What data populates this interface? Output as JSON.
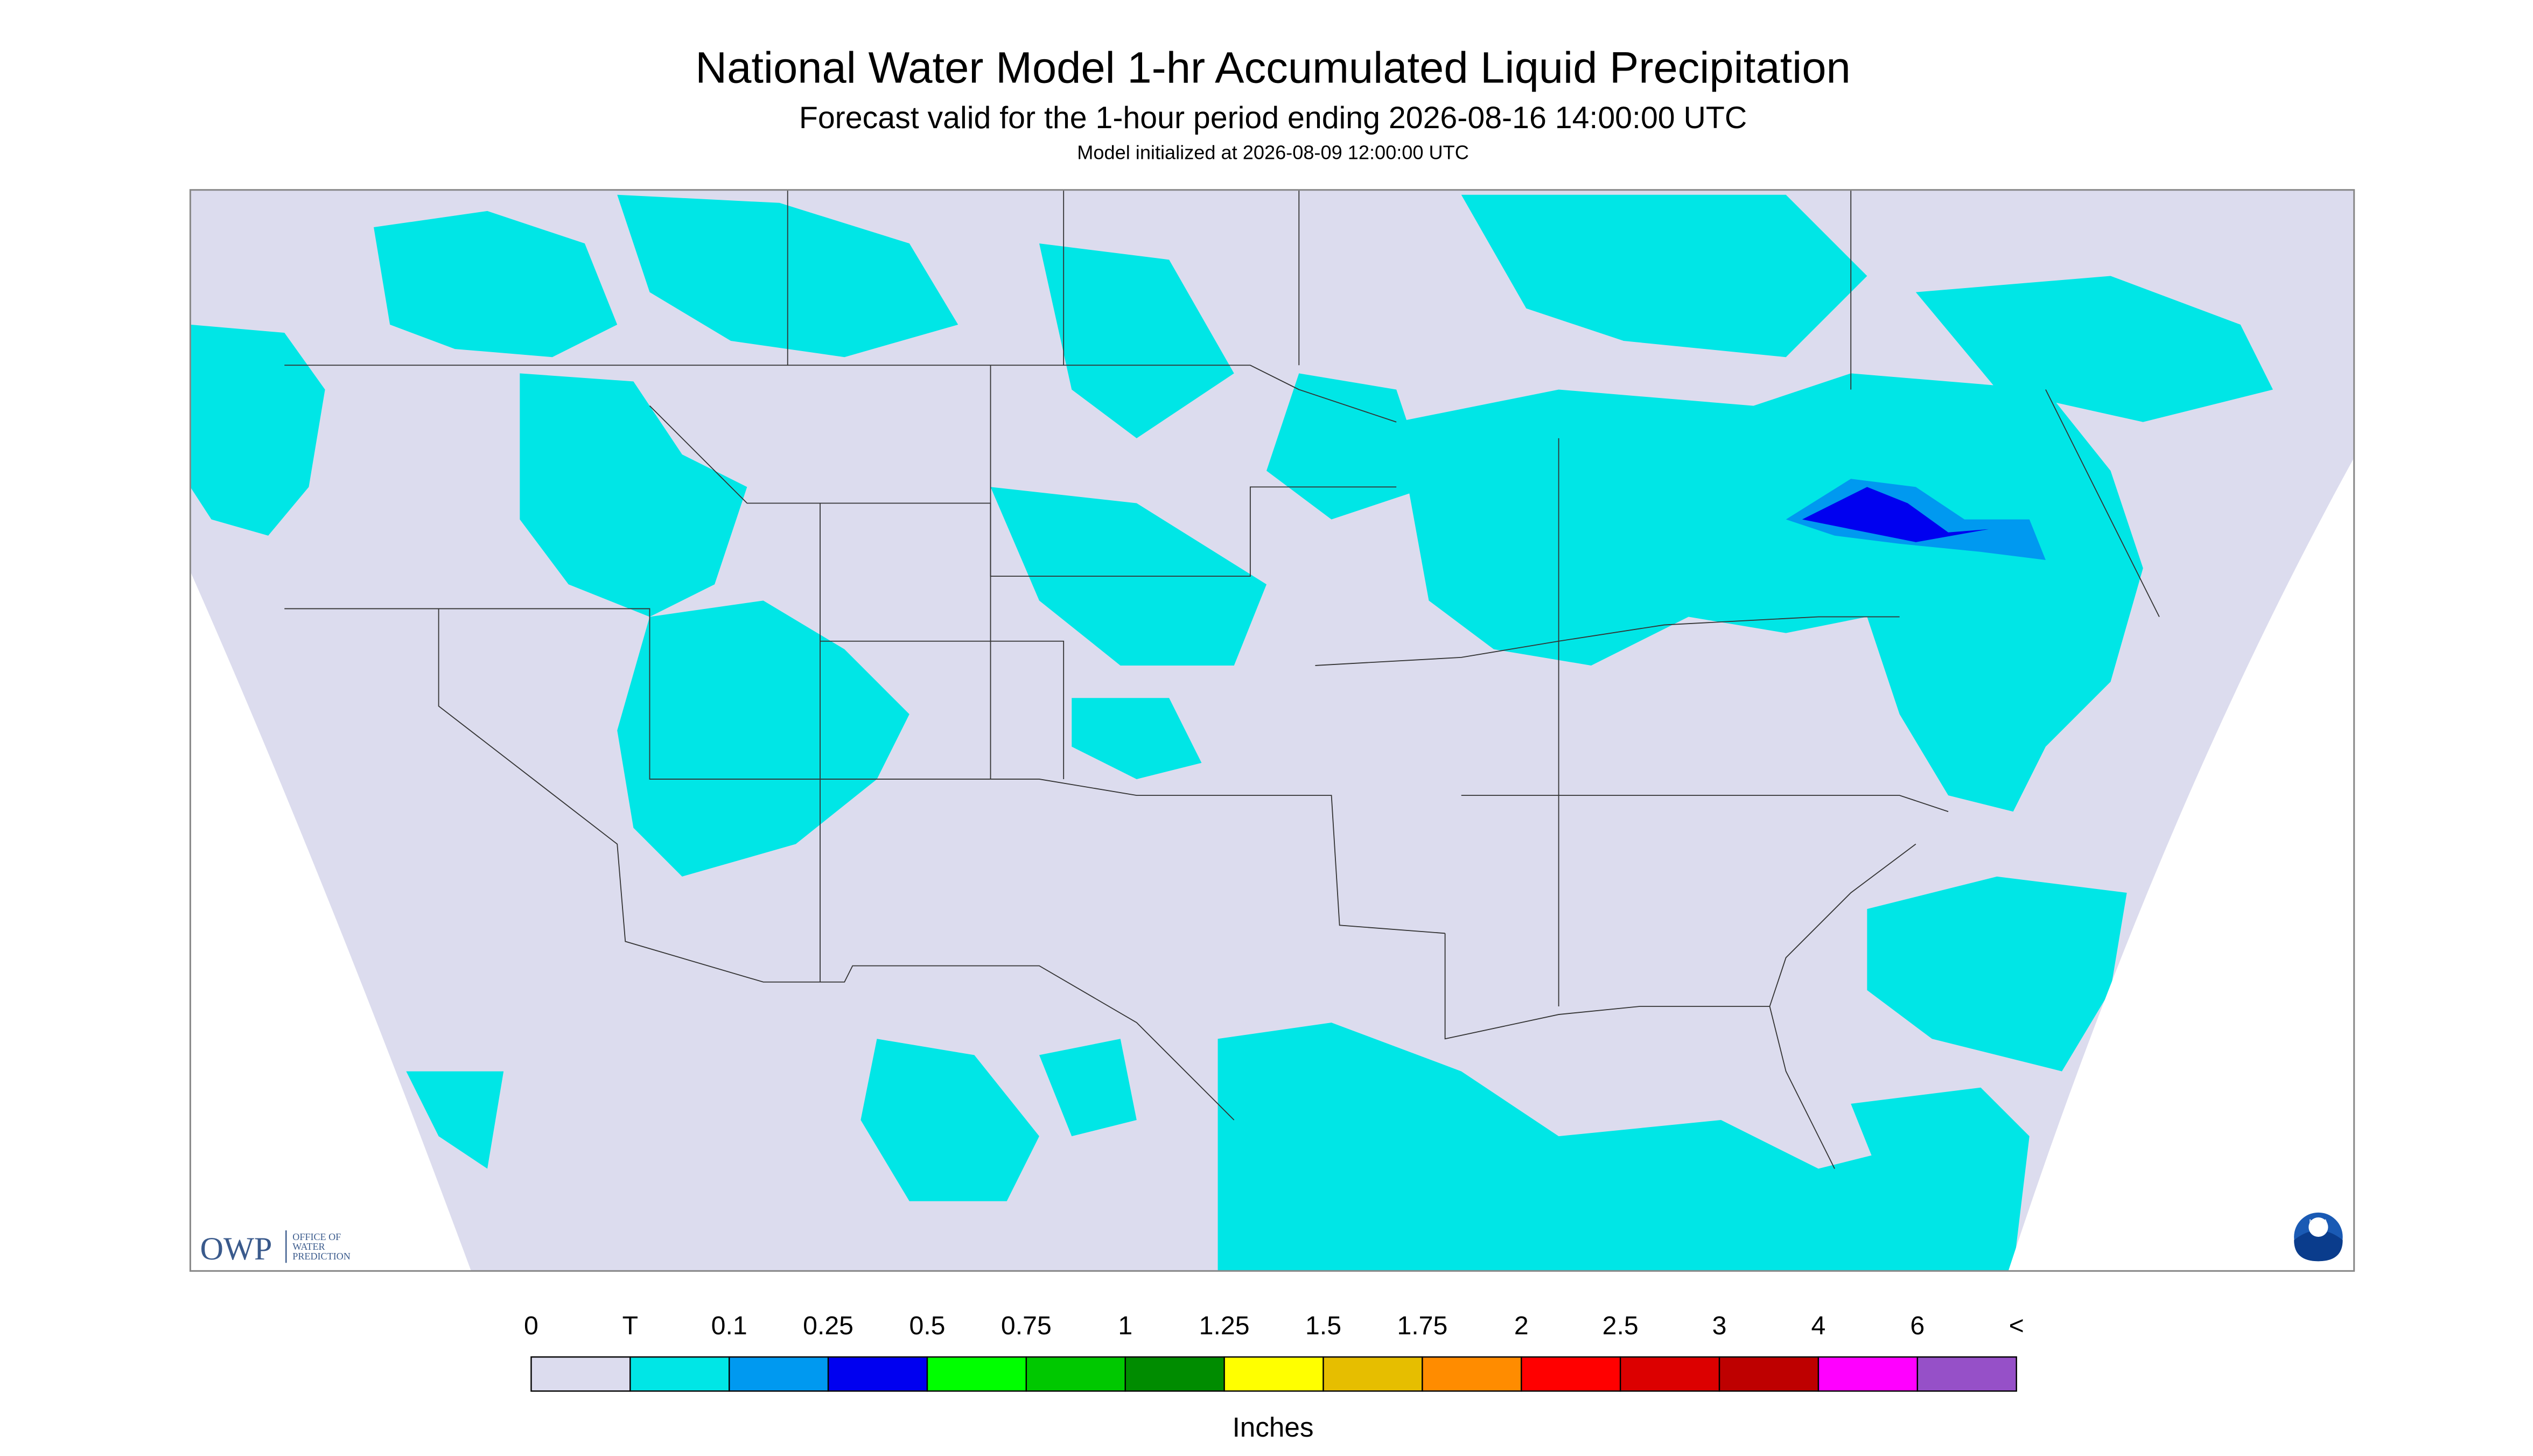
{
  "header": {
    "title": "National Water Model 1-hr Accumulated Liquid Precipitation",
    "subtitle": "Forecast valid for the 1-hour period ending 2026-08-16 14:00:00 UTC",
    "init": "Model initialized at 2026-08-09 12:00:00 UTC"
  },
  "logo": {
    "abbr": "OWP",
    "lines": [
      "OFFICE OF",
      "WATER",
      "PREDICTION"
    ],
    "noaa": "NOAA"
  },
  "legend": {
    "labels": [
      "0",
      "T",
      "0.1",
      "0.25",
      "0.5",
      "0.75",
      "1",
      "1.25",
      "1.5",
      "1.75",
      "2",
      "2.5",
      "3",
      "4",
      "6",
      "<"
    ],
    "colors": [
      "#dcdcee",
      "#00e6e6",
      "#0099f0",
      "#0000f0",
      "#00ff00",
      "#00c800",
      "#008c00",
      "#ffff00",
      "#e6be00",
      "#ff8c00",
      "#ff0000",
      "#dc0000",
      "#be0000",
      "#ff00ff",
      "#9650c8"
    ],
    "unit": "Inches"
  }
}
